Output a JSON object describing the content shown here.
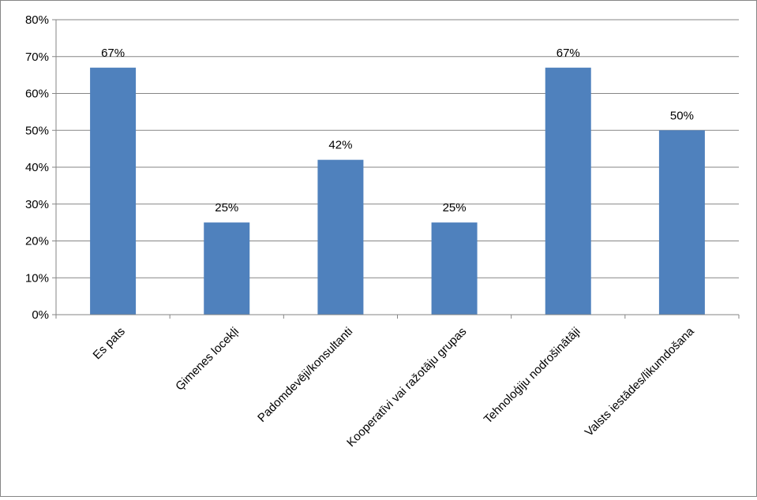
{
  "chart_data": {
    "type": "bar",
    "title": "",
    "xlabel": "",
    "ylabel": "",
    "categories": [
      "Es pats",
      "Ģimenes locekļi",
      "Padomdevēji/konsultanti",
      "Kooperatīvi vai ražotāju grupas",
      "Tehnoloģiju nodrošinātāji",
      "Valsts iestādes/likumdošana"
    ],
    "values": [
      67,
      25,
      42,
      25,
      67,
      50
    ],
    "data_labels": [
      "67%",
      "25%",
      "42%",
      "25%",
      "67%",
      "50%"
    ],
    "ylim": [
      0,
      80
    ],
    "y_ticks": [
      0,
      10,
      20,
      30,
      40,
      50,
      60,
      70,
      80
    ],
    "y_tick_labels": [
      "0%",
      "10%",
      "20%",
      "30%",
      "40%",
      "50%",
      "60%",
      "70%",
      "80%"
    ],
    "grid": true,
    "legend": "none",
    "colors": {
      "bar": "#4F81BD",
      "grid": "#868686",
      "axis": "#868686"
    }
  }
}
